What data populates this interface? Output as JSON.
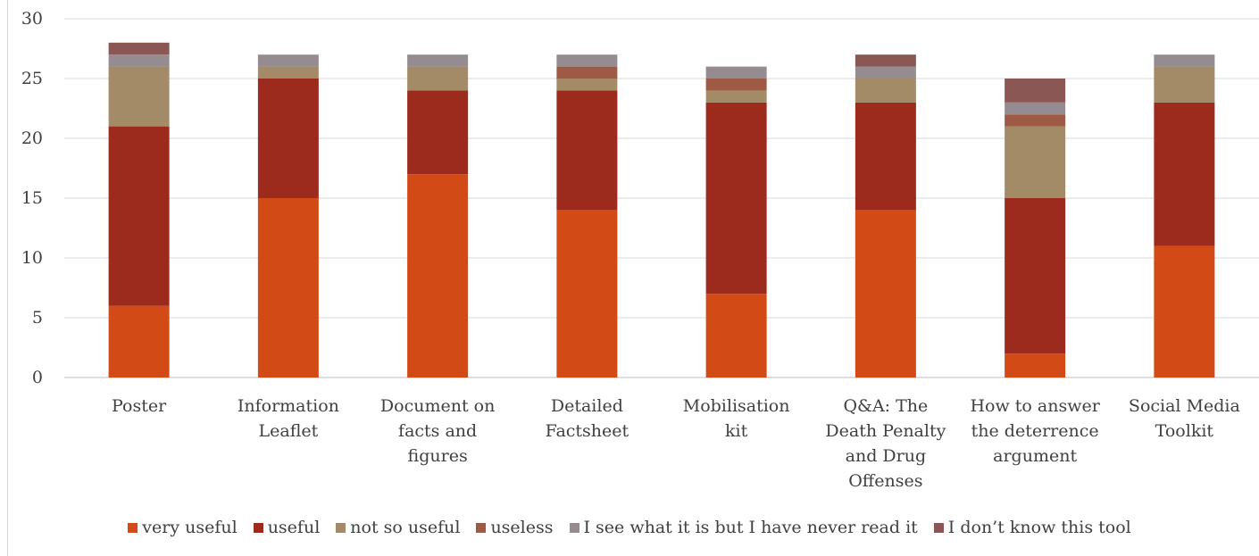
{
  "chart_data": {
    "type": "bar",
    "stacked": true,
    "title": "",
    "xlabel": "",
    "ylabel": "",
    "ylim": [
      0,
      30
    ],
    "yticks": [
      0,
      5,
      10,
      15,
      20,
      25,
      30
    ],
    "grid": true,
    "legend_position": "bottom",
    "categories": [
      [
        "Poster"
      ],
      [
        "Information",
        "Leaflet"
      ],
      [
        "Document on",
        "facts and",
        "figures"
      ],
      [
        "Detailed",
        "Factsheet"
      ],
      [
        "Mobilisation",
        "kit"
      ],
      [
        "Q&A: The",
        "Death Penalty",
        "and Drug",
        "Offenses"
      ],
      [
        "How to answer",
        "the deterrence",
        "argument"
      ],
      [
        "Social Media",
        "Toolkit"
      ]
    ],
    "series": [
      {
        "name": "very useful",
        "color": "#d24a16",
        "values": [
          6,
          15,
          17,
          14,
          7,
          14,
          2,
          11
        ]
      },
      {
        "name": "useful",
        "color": "#9c2b1e",
        "values": [
          15,
          10,
          7,
          10,
          16,
          9,
          13,
          12
        ]
      },
      {
        "name": "not so useful",
        "color": "#a38b68",
        "values": [
          5,
          1,
          2,
          1,
          1,
          2,
          6,
          3
        ]
      },
      {
        "name": "useless",
        "color": "#9e5a45",
        "values": [
          0,
          0,
          0,
          1,
          1,
          0,
          1,
          0
        ]
      },
      {
        "name": "I see what it is but I have never read it",
        "color": "#958c91",
        "values": [
          1,
          1,
          1,
          1,
          1,
          1,
          1,
          1
        ]
      },
      {
        "name": "I don’t know this tool",
        "color": "#8a5755",
        "values": [
          1,
          0,
          0,
          0,
          0,
          1,
          2,
          0
        ]
      }
    ]
  }
}
